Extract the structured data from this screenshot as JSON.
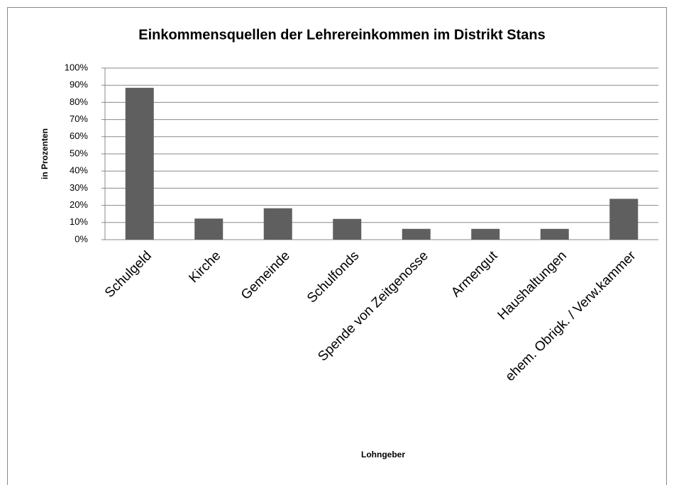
{
  "chart_data": {
    "type": "bar",
    "title": "Einkommensquellen der Lehrereinkommen im Distrikt Stans",
    "x_label": "Lohngeber",
    "y_label": "in Prozenten",
    "categories": [
      "Schulgeld",
      "Kirche",
      "Gemeinde",
      "Schulfonds",
      "Spende von Zeitgenosse",
      "Armengut",
      "Haushaltungen",
      "ehem. Obrigk. / Verw.kammer"
    ],
    "values": [
      88.5,
      12.3,
      18.3,
      12.1,
      6.3,
      6.3,
      6.3,
      23.8
    ],
    "color": "#5f5f5f",
    "ylim": [
      0,
      100
    ],
    "yticks": [
      {
        "value": 0,
        "label": "0%"
      },
      {
        "value": 10,
        "label": "10%"
      },
      {
        "value": 20,
        "label": "20%"
      },
      {
        "value": 30,
        "label": "30%"
      },
      {
        "value": 40,
        "label": "40%"
      },
      {
        "value": 50,
        "label": "50%"
      },
      {
        "value": 60,
        "label": "60%"
      },
      {
        "value": 70,
        "label": "70%"
      },
      {
        "value": 80,
        "label": "80%"
      },
      {
        "value": 90,
        "label": "90%"
      },
      {
        "value": 100,
        "label": "100%"
      }
    ],
    "grid": true
  }
}
